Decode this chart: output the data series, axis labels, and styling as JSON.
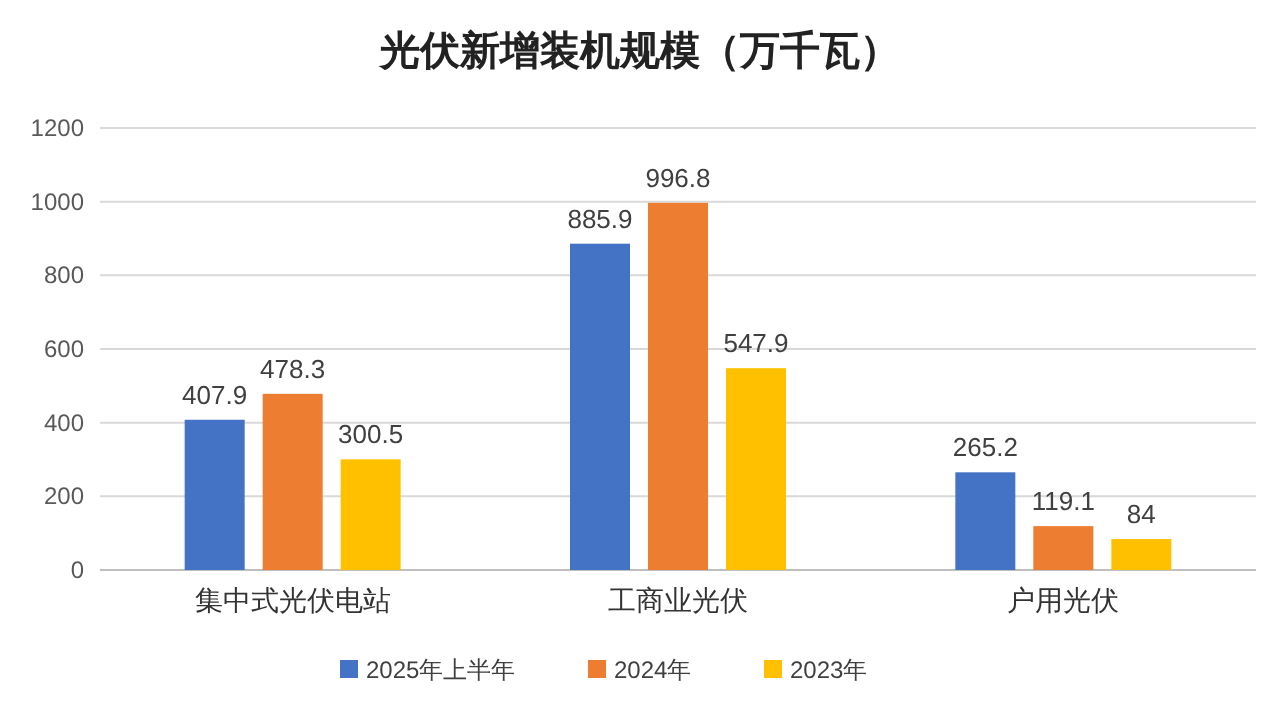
{
  "chart_data": {
    "type": "bar",
    "title": "光伏新增装机规模（万千瓦）",
    "categories": [
      "集中式光伏电站",
      "工商业光伏",
      "户用光伏"
    ],
    "series": [
      {
        "name": "2025年上半年",
        "color": "#4472c4",
        "values": [
          407.9,
          885.9,
          265.2
        ]
      },
      {
        "name": "2024年",
        "color": "#ed7d31",
        "values": [
          478.3,
          996.8,
          119.1
        ]
      },
      {
        "name": "2023年",
        "color": "#ffc000",
        "values": [
          300.5,
          547.9,
          84
        ]
      }
    ],
    "ylim": [
      0,
      1200
    ],
    "yticks": [
      0,
      200,
      400,
      600,
      800,
      1000,
      1200
    ],
    "grid": "y",
    "legend": "bottom",
    "data_labels": true
  }
}
